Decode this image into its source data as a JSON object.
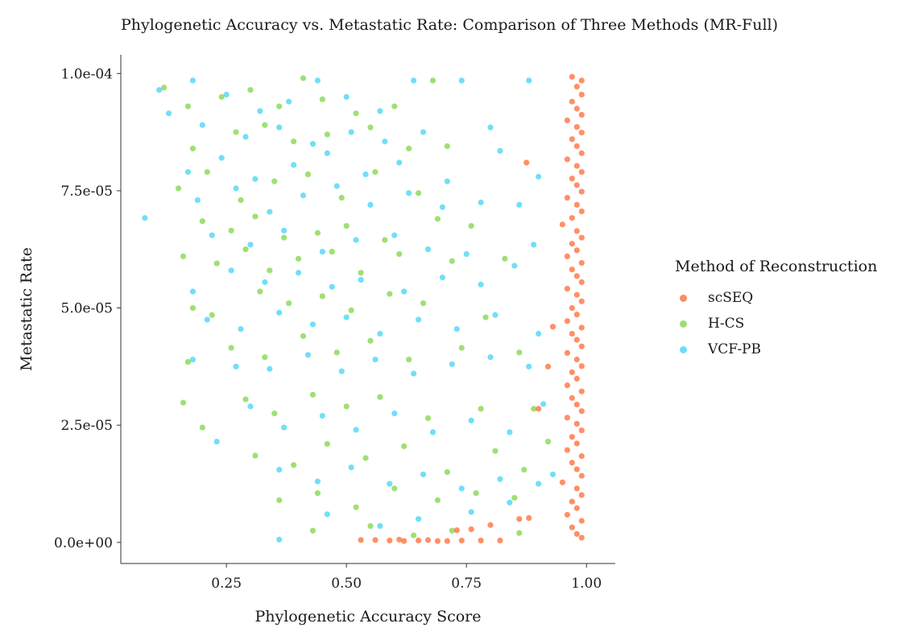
{
  "chart_data": {
    "type": "scatter",
    "title": "Phylogenetic Accuracy vs. Metastatic Rate: Comparison of Three Methods (MR-Full)",
    "xlabel": "Phylogenetic Accuracy Score",
    "ylabel": "Metastatic Rate",
    "xlim": [
      0.03,
      1.06
    ],
    "ylim": [
      -4.5e-06,
      0.000104
    ],
    "x_ticks": [
      0.25,
      0.5,
      0.75,
      1.0
    ],
    "x_tick_labels": [
      "0.25",
      "0.50",
      "0.75",
      "1.00"
    ],
    "y_ticks": [
      0,
      2.5e-05,
      5e-05,
      7.5e-05,
      0.0001
    ],
    "y_tick_labels": [
      "0.0e+00",
      "2.5e-05",
      "5.0e-05",
      "7.5e-05",
      "1.0e-04"
    ],
    "grid": false,
    "legend": {
      "title": "Method of Reconstruction",
      "placement": "right",
      "entries": [
        "scSEQ",
        "H-CS",
        "VCF-PB"
      ]
    },
    "series": [
      {
        "name": "scSEQ",
        "color": "#FF5A1F",
        "points": [
          [
            0.97,
            9.93e-05
          ],
          [
            0.99,
            9.85e-05
          ],
          [
            0.98,
            9.72e-05
          ],
          [
            0.99,
            9.55e-05
          ],
          [
            0.97,
            9.4e-05
          ],
          [
            0.98,
            9.25e-05
          ],
          [
            0.99,
            9.12e-05
          ],
          [
            0.96,
            9e-05
          ],
          [
            0.98,
            8.86e-05
          ],
          [
            0.99,
            8.74e-05
          ],
          [
            0.97,
            8.6e-05
          ],
          [
            0.98,
            8.45e-05
          ],
          [
            0.99,
            8.3e-05
          ],
          [
            0.96,
            8.17e-05
          ],
          [
            0.98,
            8.03e-05
          ],
          [
            0.99,
            7.9e-05
          ],
          [
            0.97,
            7.76e-05
          ],
          [
            0.98,
            7.62e-05
          ],
          [
            0.99,
            7.48e-05
          ],
          [
            0.96,
            7.35e-05
          ],
          [
            0.98,
            7.2e-05
          ],
          [
            0.99,
            7.06e-05
          ],
          [
            0.97,
            6.92e-05
          ],
          [
            0.95,
            6.78e-05
          ],
          [
            0.98,
            6.64e-05
          ],
          [
            0.99,
            6.5e-05
          ],
          [
            0.97,
            6.37e-05
          ],
          [
            0.98,
            6.23e-05
          ],
          [
            0.96,
            6.1e-05
          ],
          [
            0.99,
            5.96e-05
          ],
          [
            0.97,
            5.82e-05
          ],
          [
            0.98,
            5.68e-05
          ],
          [
            0.99,
            5.55e-05
          ],
          [
            0.96,
            5.41e-05
          ],
          [
            0.98,
            5.28e-05
          ],
          [
            0.99,
            5.14e-05
          ],
          [
            0.97,
            5e-05
          ],
          [
            0.98,
            4.86e-05
          ],
          [
            0.96,
            4.72e-05
          ],
          [
            0.99,
            4.58e-05
          ],
          [
            0.97,
            4.45e-05
          ],
          [
            0.98,
            4.32e-05
          ],
          [
            0.99,
            4.18e-05
          ],
          [
            0.96,
            4.04e-05
          ],
          [
            0.98,
            3.9e-05
          ],
          [
            0.99,
            3.76e-05
          ],
          [
            0.97,
            3.63e-05
          ],
          [
            0.98,
            3.49e-05
          ],
          [
            0.96,
            3.35e-05
          ],
          [
            0.99,
            3.22e-05
          ],
          [
            0.97,
            3.08e-05
          ],
          [
            0.98,
            2.94e-05
          ],
          [
            0.99,
            2.8e-05
          ],
          [
            0.96,
            2.66e-05
          ],
          [
            0.98,
            2.53e-05
          ],
          [
            0.99,
            2.39e-05
          ],
          [
            0.97,
            2.25e-05
          ],
          [
            0.98,
            2.11e-05
          ],
          [
            0.96,
            1.97e-05
          ],
          [
            0.99,
            1.84e-05
          ],
          [
            0.97,
            1.7e-05
          ],
          [
            0.98,
            1.56e-05
          ],
          [
            0.99,
            1.42e-05
          ],
          [
            0.95,
            1.28e-05
          ],
          [
            0.98,
            1.15e-05
          ],
          [
            0.99,
            1.01e-05
          ],
          [
            0.97,
            8.7e-06
          ],
          [
            0.98,
            7.3e-06
          ],
          [
            0.96,
            5.9e-06
          ],
          [
            0.99,
            4.6e-06
          ],
          [
            0.97,
            3.2e-06
          ],
          [
            0.98,
            1.8e-06
          ],
          [
            0.99,
            1e-06
          ],
          [
            0.875,
            8.1e-05
          ],
          [
            0.93,
            4.6e-05
          ],
          [
            0.92,
            3.75e-05
          ],
          [
            0.9,
            2.85e-05
          ],
          [
            0.53,
            5e-07
          ],
          [
            0.56,
            5e-07
          ],
          [
            0.59,
            4e-07
          ],
          [
            0.61,
            6e-07
          ],
          [
            0.62,
            3e-07
          ],
          [
            0.65,
            4e-07
          ],
          [
            0.67,
            5e-07
          ],
          [
            0.69,
            3e-07
          ],
          [
            0.71,
            3e-07
          ],
          [
            0.73,
            2.6e-06
          ],
          [
            0.74,
            4e-07
          ],
          [
            0.76,
            2.8e-06
          ],
          [
            0.78,
            4e-07
          ],
          [
            0.8,
            3.7e-06
          ],
          [
            0.82,
            4e-07
          ],
          [
            0.86,
            5e-06
          ],
          [
            0.88,
            5.2e-06
          ]
        ]
      },
      {
        "name": "H-CS",
        "color": "#72D230",
        "points": [
          [
            0.12,
            9.7e-05
          ],
          [
            0.17,
            9.3e-05
          ],
          [
            0.24,
            9.5e-05
          ],
          [
            0.3,
            9.65e-05
          ],
          [
            0.36,
            9.3e-05
          ],
          [
            0.41,
            9.9e-05
          ],
          [
            0.45,
            9.45e-05
          ],
          [
            0.52,
            9.15e-05
          ],
          [
            0.6,
            9.3e-05
          ],
          [
            0.68,
            9.85e-05
          ],
          [
            0.18,
            8.4e-05
          ],
          [
            0.27,
            8.75e-05
          ],
          [
            0.33,
            8.9e-05
          ],
          [
            0.39,
            8.55e-05
          ],
          [
            0.46,
            8.7e-05
          ],
          [
            0.55,
            8.85e-05
          ],
          [
            0.63,
            8.4e-05
          ],
          [
            0.71,
            8.45e-05
          ],
          [
            0.15,
            7.55e-05
          ],
          [
            0.21,
            7.9e-05
          ],
          [
            0.28,
            7.3e-05
          ],
          [
            0.35,
            7.7e-05
          ],
          [
            0.42,
            7.85e-05
          ],
          [
            0.49,
            7.35e-05
          ],
          [
            0.56,
            7.9e-05
          ],
          [
            0.65,
            7.45e-05
          ],
          [
            0.2,
            6.85e-05
          ],
          [
            0.26,
            6.65e-05
          ],
          [
            0.31,
            6.95e-05
          ],
          [
            0.37,
            6.5e-05
          ],
          [
            0.44,
            6.6e-05
          ],
          [
            0.5,
            6.75e-05
          ],
          [
            0.58,
            6.45e-05
          ],
          [
            0.69,
            6.9e-05
          ],
          [
            0.76,
            6.75e-05
          ],
          [
            0.16,
            6.1e-05
          ],
          [
            0.23,
            5.95e-05
          ],
          [
            0.29,
            6.25e-05
          ],
          [
            0.34,
            5.8e-05
          ],
          [
            0.4,
            6.05e-05
          ],
          [
            0.47,
            6.2e-05
          ],
          [
            0.53,
            5.75e-05
          ],
          [
            0.61,
            6.15e-05
          ],
          [
            0.72,
            6e-05
          ],
          [
            0.83,
            6.05e-05
          ],
          [
            0.18,
            5e-05
          ],
          [
            0.22,
            4.85e-05
          ],
          [
            0.32,
            5.35e-05
          ],
          [
            0.38,
            5.1e-05
          ],
          [
            0.45,
            5.25e-05
          ],
          [
            0.51,
            4.95e-05
          ],
          [
            0.59,
            5.3e-05
          ],
          [
            0.66,
            5.1e-05
          ],
          [
            0.79,
            4.8e-05
          ],
          [
            0.17,
            3.85e-05
          ],
          [
            0.26,
            4.15e-05
          ],
          [
            0.33,
            3.95e-05
          ],
          [
            0.41,
            4.4e-05
          ],
          [
            0.48,
            4.05e-05
          ],
          [
            0.55,
            4.3e-05
          ],
          [
            0.63,
            3.9e-05
          ],
          [
            0.74,
            4.15e-05
          ],
          [
            0.86,
            4.05e-05
          ],
          [
            0.16,
            2.98e-05
          ],
          [
            0.2,
            2.45e-05
          ],
          [
            0.29,
            3.05e-05
          ],
          [
            0.35,
            2.75e-05
          ],
          [
            0.43,
            3.15e-05
          ],
          [
            0.5,
            2.9e-05
          ],
          [
            0.57,
            3.1e-05
          ],
          [
            0.67,
            2.65e-05
          ],
          [
            0.78,
            2.85e-05
          ],
          [
            0.89,
            2.85e-05
          ],
          [
            0.31,
            1.85e-05
          ],
          [
            0.39,
            1.65e-05
          ],
          [
            0.46,
            2.1e-05
          ],
          [
            0.54,
            1.8e-05
          ],
          [
            0.62,
            2.05e-05
          ],
          [
            0.71,
            1.5e-05
          ],
          [
            0.81,
            1.95e-05
          ],
          [
            0.87,
            1.55e-05
          ],
          [
            0.36,
            9e-06
          ],
          [
            0.44,
            1.05e-05
          ],
          [
            0.52,
            7.5e-06
          ],
          [
            0.6,
            1.15e-05
          ],
          [
            0.69,
            9e-06
          ],
          [
            0.77,
            1.05e-05
          ],
          [
            0.85,
            9.5e-06
          ],
          [
            0.43,
            2.5e-06
          ],
          [
            0.55,
            3.5e-06
          ],
          [
            0.64,
            1.5e-06
          ],
          [
            0.72,
            2.5e-06
          ],
          [
            0.86,
            2e-06
          ],
          [
            0.92,
            2.15e-05
          ]
        ]
      },
      {
        "name": "VCF-PB",
        "color": "#2ED0F5",
        "points": [
          [
            0.11,
            9.65e-05
          ],
          [
            0.18,
            9.85e-05
          ],
          [
            0.25,
            9.55e-05
          ],
          [
            0.32,
            9.2e-05
          ],
          [
            0.38,
            9.4e-05
          ],
          [
            0.44,
            9.85e-05
          ],
          [
            0.5,
            9.5e-05
          ],
          [
            0.57,
            9.2e-05
          ],
          [
            0.64,
            9.85e-05
          ],
          [
            0.74,
            9.85e-05
          ],
          [
            0.88,
            9.85e-05
          ],
          [
            0.13,
            9.15e-05
          ],
          [
            0.2,
            8.9e-05
          ],
          [
            0.29,
            8.65e-05
          ],
          [
            0.36,
            8.85e-05
          ],
          [
            0.43,
            8.5e-05
          ],
          [
            0.51,
            8.75e-05
          ],
          [
            0.58,
            8.55e-05
          ],
          [
            0.66,
            8.75e-05
          ],
          [
            0.8,
            8.85e-05
          ],
          [
            0.17,
            7.9e-05
          ],
          [
            0.24,
            8.2e-05
          ],
          [
            0.31,
            7.75e-05
          ],
          [
            0.39,
            8.05e-05
          ],
          [
            0.46,
            8.3e-05
          ],
          [
            0.54,
            7.85e-05
          ],
          [
            0.61,
            8.1e-05
          ],
          [
            0.71,
            7.7e-05
          ],
          [
            0.82,
            8.35e-05
          ],
          [
            0.9,
            7.8e-05
          ],
          [
            0.08,
            6.92e-05
          ],
          [
            0.19,
            7.3e-05
          ],
          [
            0.27,
            7.55e-05
          ],
          [
            0.34,
            7.05e-05
          ],
          [
            0.41,
            7.4e-05
          ],
          [
            0.48,
            7.6e-05
          ],
          [
            0.55,
            7.2e-05
          ],
          [
            0.63,
            7.45e-05
          ],
          [
            0.7,
            7.15e-05
          ],
          [
            0.78,
            7.25e-05
          ],
          [
            0.86,
            7.2e-05
          ],
          [
            0.22,
            6.55e-05
          ],
          [
            0.3,
            6.35e-05
          ],
          [
            0.37,
            6.65e-05
          ],
          [
            0.45,
            6.2e-05
          ],
          [
            0.52,
            6.45e-05
          ],
          [
            0.6,
            6.55e-05
          ],
          [
            0.67,
            6.25e-05
          ],
          [
            0.75,
            6.15e-05
          ],
          [
            0.89,
            6.35e-05
          ],
          [
            0.18,
            5.35e-05
          ],
          [
            0.26,
            5.8e-05
          ],
          [
            0.33,
            5.55e-05
          ],
          [
            0.4,
            5.75e-05
          ],
          [
            0.47,
            5.45e-05
          ],
          [
            0.53,
            5.6e-05
          ],
          [
            0.62,
            5.35e-05
          ],
          [
            0.7,
            5.65e-05
          ],
          [
            0.78,
            5.5e-05
          ],
          [
            0.85,
            5.9e-05
          ],
          [
            0.21,
            4.75e-05
          ],
          [
            0.28,
            4.55e-05
          ],
          [
            0.36,
            4.9e-05
          ],
          [
            0.43,
            4.65e-05
          ],
          [
            0.5,
            4.8e-05
          ],
          [
            0.57,
            4.45e-05
          ],
          [
            0.65,
            4.75e-05
          ],
          [
            0.73,
            4.55e-05
          ],
          [
            0.81,
            4.85e-05
          ],
          [
            0.9,
            4.45e-05
          ],
          [
            0.18,
            3.9e-05
          ],
          [
            0.27,
            3.75e-05
          ],
          [
            0.34,
            3.7e-05
          ],
          [
            0.42,
            4e-05
          ],
          [
            0.49,
            3.65e-05
          ],
          [
            0.56,
            3.9e-05
          ],
          [
            0.64,
            3.6e-05
          ],
          [
            0.72,
            3.8e-05
          ],
          [
            0.8,
            3.95e-05
          ],
          [
            0.88,
            3.75e-05
          ],
          [
            0.23,
            2.15e-05
          ],
          [
            0.3,
            2.9e-05
          ],
          [
            0.37,
            2.45e-05
          ],
          [
            0.45,
            2.7e-05
          ],
          [
            0.52,
            2.4e-05
          ],
          [
            0.6,
            2.75e-05
          ],
          [
            0.68,
            2.35e-05
          ],
          [
            0.76,
            2.6e-05
          ],
          [
            0.84,
            2.35e-05
          ],
          [
            0.91,
            2.95e-05
          ],
          [
            0.36,
            1.55e-05
          ],
          [
            0.44,
            1.3e-05
          ],
          [
            0.51,
            1.6e-05
          ],
          [
            0.59,
            1.25e-05
          ],
          [
            0.66,
            1.45e-05
          ],
          [
            0.74,
            1.15e-05
          ],
          [
            0.82,
            1.35e-05
          ],
          [
            0.9,
            1.25e-05
          ],
          [
            0.36,
            6e-07
          ],
          [
            0.46,
            6e-06
          ],
          [
            0.57,
            3.5e-06
          ],
          [
            0.65,
            5e-06
          ],
          [
            0.76,
            6.5e-06
          ],
          [
            0.84,
            8.5e-06
          ],
          [
            0.93,
            1.45e-05
          ]
        ]
      }
    ]
  }
}
